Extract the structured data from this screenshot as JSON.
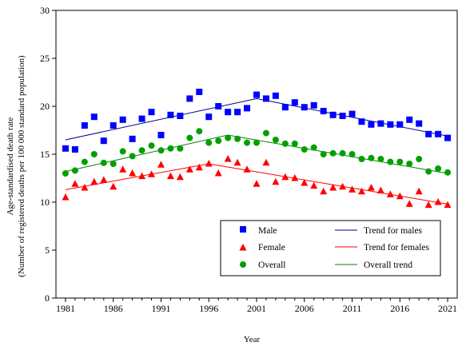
{
  "chart_data": {
    "type": "scatter",
    "title": "",
    "xlabel": "Year",
    "ylabel_line1": "Age-standardised death rate",
    "ylabel_line2": "(Number of registered deaths per 100 000 standard population)",
    "xlim": [
      1980,
      2022
    ],
    "ylim": [
      0,
      30
    ],
    "xticks": [
      1981,
      1986,
      1991,
      1996,
      2001,
      2006,
      2011,
      2016,
      2021
    ],
    "yticks": [
      0,
      5,
      10,
      15,
      20,
      25,
      30
    ],
    "x": [
      1981,
      1982,
      1983,
      1984,
      1985,
      1986,
      1987,
      1988,
      1989,
      1990,
      1991,
      1992,
      1993,
      1994,
      1995,
      1996,
      1997,
      1998,
      1999,
      2000,
      2001,
      2002,
      2003,
      2004,
      2005,
      2006,
      2007,
      2008,
      2009,
      2010,
      2011,
      2012,
      2013,
      2014,
      2015,
      2016,
      2017,
      2018,
      2019,
      2020,
      2021
    ],
    "legend_position": "bottom-right",
    "series": [
      {
        "name": "Male",
        "marker": "square",
        "color": "#0000ff",
        "values": [
          15.6,
          15.5,
          18.0,
          18.9,
          16.4,
          18.0,
          18.6,
          16.6,
          18.7,
          19.4,
          17.0,
          19.1,
          19.0,
          20.8,
          21.5,
          18.9,
          20.0,
          19.4,
          19.4,
          19.8,
          21.2,
          20.8,
          21.1,
          19.9,
          20.4,
          19.9,
          20.1,
          19.5,
          19.1,
          19.0,
          19.2,
          18.4,
          18.1,
          18.2,
          18.1,
          18.1,
          18.6,
          18.2,
          17.1,
          17.1,
          16.7
        ]
      },
      {
        "name": "Female",
        "marker": "triangle",
        "color": "#ff0000",
        "values": [
          10.5,
          11.9,
          11.5,
          12.1,
          12.3,
          11.6,
          13.4,
          13.0,
          12.7,
          12.9,
          13.9,
          12.7,
          12.6,
          13.4,
          13.6,
          14.0,
          13.0,
          14.5,
          14.1,
          13.4,
          11.9,
          14.1,
          12.1,
          12.6,
          12.5,
          12.0,
          11.7,
          11.1,
          11.5,
          11.6,
          11.3,
          11.1,
          11.5,
          11.2,
          10.8,
          10.6,
          9.8,
          11.1,
          9.7,
          10.0,
          9.7
        ]
      },
      {
        "name": "Overall",
        "marker": "circle",
        "color": "#00a000",
        "values": [
          13.0,
          13.3,
          14.2,
          15.0,
          14.1,
          14.0,
          15.3,
          14.8,
          15.4,
          15.9,
          15.4,
          15.6,
          15.6,
          16.7,
          17.4,
          16.2,
          16.4,
          16.7,
          16.6,
          16.2,
          16.2,
          17.2,
          16.5,
          16.1,
          16.1,
          15.5,
          15.7,
          15.0,
          15.1,
          15.1,
          15.0,
          14.5,
          14.6,
          14.5,
          14.2,
          14.2,
          14.0,
          14.5,
          13.2,
          13.5,
          13.1
        ]
      }
    ],
    "trends": [
      {
        "name": "Trend for males",
        "color": "#00008b",
        "x": [
          1981,
          2001,
          2021
        ],
        "values": [
          16.5,
          20.8,
          16.9
        ]
      },
      {
        "name": "Trend for females",
        "color": "#ff0000",
        "x": [
          1981,
          1996,
          2021
        ],
        "values": [
          11.3,
          14.0,
          9.8
        ]
      },
      {
        "name": "Overall trend",
        "color": "#008000",
        "x": [
          1981,
          1998,
          2021
        ],
        "values": [
          13.2,
          17.0,
          13.0
        ]
      }
    ]
  }
}
